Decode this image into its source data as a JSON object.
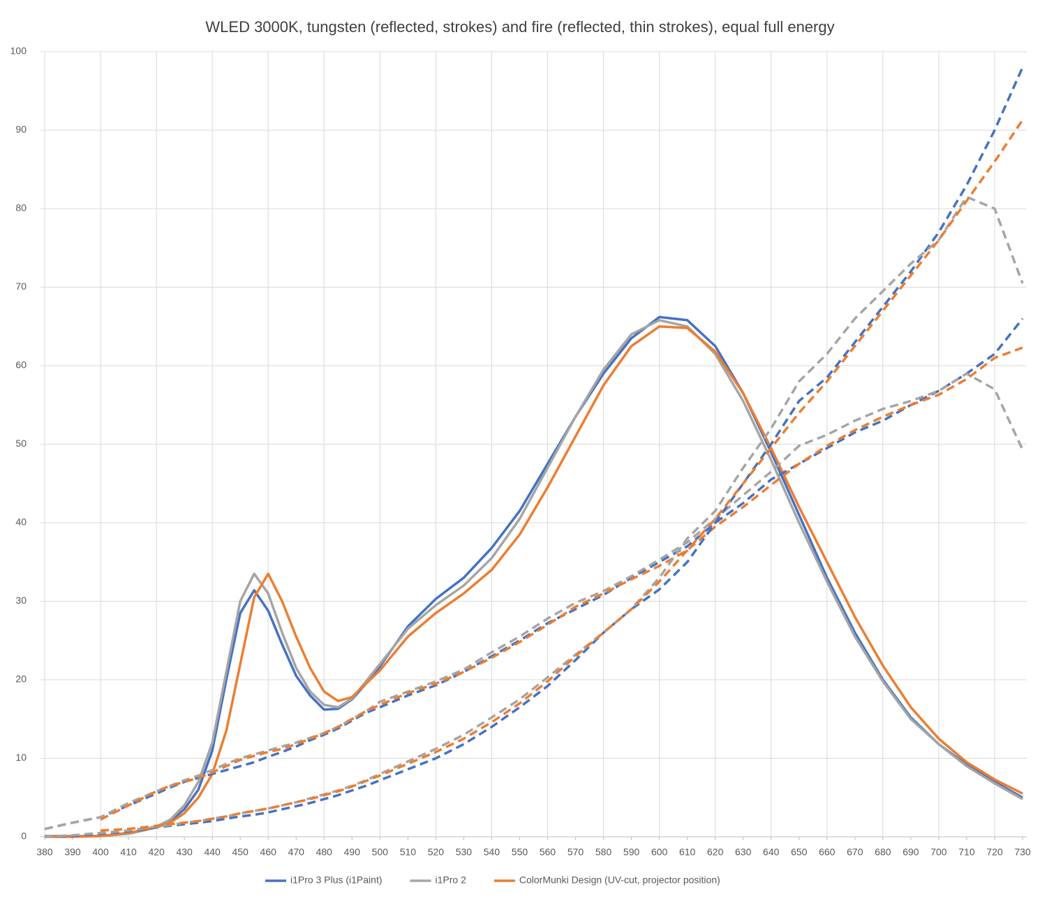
{
  "chart_data": {
    "type": "line",
    "title": "WLED 3000K, tungsten (reflected, strokes) and fire (reflected, thin strokes), equal full energy",
    "x": [
      380,
      390,
      400,
      410,
      420,
      425,
      430,
      435,
      440,
      445,
      450,
      455,
      460,
      465,
      470,
      475,
      480,
      485,
      490,
      495,
      500,
      510,
      520,
      530,
      540,
      550,
      560,
      570,
      580,
      590,
      600,
      610,
      620,
      630,
      640,
      650,
      660,
      670,
      680,
      690,
      700,
      710,
      720,
      730
    ],
    "series": [
      {
        "name": "i1Pro 3 Plus (i1Paint)",
        "color": "#4472c4",
        "dashed": false,
        "values": [
          0.1,
          0.1,
          0.1,
          0.4,
          1.2,
          2,
          3.5,
          6,
          11,
          20,
          28.5,
          31.4,
          28.8,
          24.5,
          20.5,
          18,
          16.2,
          16.3,
          17.5,
          19.5,
          21.7,
          26.8,
          30.3,
          33,
          36.8,
          41.5,
          47.5,
          53.5,
          59,
          63.5,
          66.2,
          65.8,
          62.5,
          56.5,
          49,
          41,
          33,
          26,
          20,
          15.2,
          11.8,
          9.2,
          7,
          5
        ]
      },
      {
        "name": "i1Pro 2",
        "color": "#a5a5a5",
        "dashed": false,
        "values": [
          0.1,
          0.1,
          0.1,
          0.4,
          1.3,
          2.2,
          4,
          7,
          12,
          21,
          30,
          33.5,
          31,
          26,
          21.5,
          18.5,
          16.8,
          16.5,
          17.6,
          19.8,
          22,
          26.5,
          29.5,
          32,
          35.5,
          40.5,
          47,
          53.5,
          59.5,
          64,
          65.8,
          65,
          61.5,
          55.5,
          48,
          40,
          32.5,
          25.5,
          19.8,
          15,
          11.8,
          9,
          6.8,
          4.8
        ]
      },
      {
        "name": "ColorMunki Design (UV-cut, projector position)",
        "color": "#ed7d31",
        "dashed": false,
        "values": [
          0,
          0,
          0.1,
          0.5,
          1.2,
          1.8,
          3,
          5,
          8,
          13.5,
          22,
          30.5,
          33.5,
          30,
          25.5,
          21.5,
          18.5,
          17.3,
          17.8,
          19.5,
          21.2,
          25.5,
          28.5,
          31,
          34,
          38.5,
          44.5,
          51,
          57.5,
          62.5,
          65,
          64.8,
          61.8,
          56.5,
          49.5,
          42,
          35,
          28,
          21.8,
          16.5,
          12.5,
          9.5,
          7.3,
          5.5
        ]
      },
      {
        "color": "#4472c4",
        "dashed": true,
        "values": [
          1,
          1.8,
          2.5,
          4,
          5.5,
          6.3,
          7,
          7.5,
          8,
          8.5,
          9,
          9.5,
          10.2,
          10.8,
          11.5,
          12.3,
          13,
          13.8,
          14.8,
          15.8,
          16.5,
          18,
          19.3,
          21,
          23,
          25,
          27.2,
          29,
          30.8,
          33,
          35,
          37,
          40,
          42.5,
          45.5,
          47.5,
          49.5,
          51.5,
          53,
          55,
          56.8,
          59,
          61.5,
          66
        ]
      },
      {
        "color": "#a5a5a5",
        "dashed": true,
        "values": [
          1,
          1.8,
          2.5,
          4.3,
          5.8,
          6.5,
          7.2,
          7.8,
          8.5,
          9.3,
          10,
          10.5,
          11,
          11.5,
          12,
          12.6,
          13.2,
          14,
          15,
          16,
          17.2,
          18.5,
          19.8,
          21.3,
          23.5,
          25.5,
          27.8,
          29.8,
          31.3,
          33.2,
          35.3,
          37.5,
          40.5,
          43.5,
          46.5,
          49.8,
          51.2,
          53,
          54.5,
          55.5,
          56.8,
          59,
          57,
          49.3
        ]
      },
      {
        "color": "#ed7d31",
        "dashed": true,
        "values": [
          null,
          null,
          2.2,
          4,
          5.8,
          6.5,
          7,
          7.5,
          8.2,
          9,
          9.8,
          10.3,
          10.8,
          11.2,
          11.8,
          12.5,
          13.2,
          14,
          15,
          16,
          16.8,
          18.3,
          19.5,
          21,
          22.8,
          24.8,
          27,
          29.3,
          31,
          32.8,
          34.5,
          36.5,
          39.5,
          42,
          44.8,
          47.5,
          49.8,
          51.8,
          53.5,
          55,
          56.3,
          58.3,
          61,
          62.3
        ]
      },
      {
        "color": "#4472c4",
        "dashed": true,
        "values": [
          0,
          0.1,
          0.4,
          0.7,
          1.2,
          1.4,
          1.6,
          1.8,
          2,
          2.3,
          2.6,
          2.8,
          3.1,
          3.5,
          3.9,
          4.3,
          4.8,
          5.3,
          5.9,
          6.5,
          7.2,
          8.6,
          10,
          11.8,
          14,
          16.5,
          19.2,
          22.5,
          26,
          29,
          31.5,
          35,
          40,
          45,
          50,
          55.5,
          58.5,
          63,
          67.5,
          72,
          77,
          83,
          90,
          98
        ]
      },
      {
        "color": "#a5a5a5",
        "dashed": true,
        "values": [
          0,
          0.2,
          0.5,
          0.8,
          1.3,
          1.5,
          1.8,
          2,
          2.3,
          2.6,
          3,
          3.3,
          3.6,
          4,
          4.4,
          4.9,
          5.4,
          5.9,
          6.5,
          7.2,
          8,
          9.6,
          11.2,
          13,
          15.2,
          17.5,
          20.3,
          23.2,
          26,
          29,
          33,
          38,
          41.5,
          47,
          52,
          58,
          61.5,
          66,
          69.5,
          73,
          76,
          81.5,
          80,
          70.5
        ]
      },
      {
        "color": "#ed7d31",
        "dashed": true,
        "values": [
          null,
          null,
          0.8,
          1,
          1.4,
          1.6,
          1.8,
          2,
          2.3,
          2.6,
          3,
          3.3,
          3.6,
          4,
          4.4,
          4.8,
          5.3,
          5.8,
          6.4,
          7.1,
          7.8,
          9.3,
          10.8,
          12.5,
          14.6,
          17,
          19.8,
          23,
          26,
          29,
          32.5,
          36.5,
          40.5,
          45,
          49.5,
          54,
          58,
          62.5,
          67,
          71.5,
          76,
          81,
          86,
          91.3
        ]
      }
    ],
    "xlim": [
      378.5,
      731.5
    ],
    "ylim": [
      0,
      100
    ],
    "xticks": [
      380,
      390,
      400,
      410,
      420,
      430,
      440,
      450,
      460,
      470,
      480,
      490,
      500,
      510,
      520,
      530,
      540,
      550,
      560,
      570,
      580,
      590,
      600,
      610,
      620,
      630,
      640,
      650,
      660,
      670,
      680,
      690,
      700,
      710,
      720,
      730
    ],
    "yticks": [
      0,
      10,
      20,
      30,
      40,
      50,
      60,
      70,
      80,
      90,
      100
    ],
    "grid": true,
    "legend": "bottom"
  }
}
